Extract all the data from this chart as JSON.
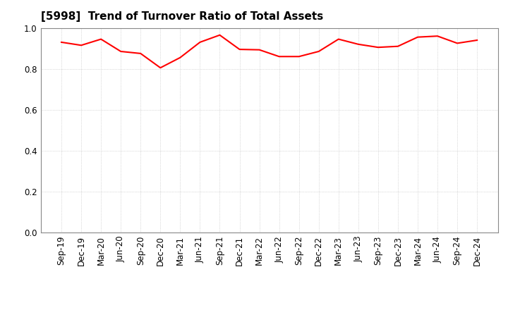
{
  "title": "[5998]  Trend of Turnover Ratio of Total Assets",
  "labels": [
    "Sep-19",
    "Dec-19",
    "Mar-20",
    "Jun-20",
    "Sep-20",
    "Dec-20",
    "Mar-21",
    "Jun-21",
    "Sep-21",
    "Dec-21",
    "Mar-22",
    "Jun-22",
    "Sep-22",
    "Dec-22",
    "Mar-23",
    "Jun-23",
    "Sep-23",
    "Dec-23",
    "Mar-24",
    "Jun-24",
    "Sep-24",
    "Dec-24"
  ],
  "values": [
    0.93,
    0.915,
    0.945,
    0.885,
    0.875,
    0.805,
    0.855,
    0.93,
    0.965,
    0.895,
    0.893,
    0.86,
    0.86,
    0.885,
    0.945,
    0.92,
    0.905,
    0.91,
    0.955,
    0.96,
    0.925,
    0.94
  ],
  "line_color": "#FF0000",
  "line_width": 1.5,
  "ylim": [
    0.0,
    1.0
  ],
  "yticks": [
    0.0,
    0.2,
    0.4,
    0.6,
    0.8,
    1.0
  ],
  "bg_color": "#FFFFFF",
  "grid_color": "#BBBBBB",
  "title_fontsize": 11,
  "tick_fontsize": 8.5
}
